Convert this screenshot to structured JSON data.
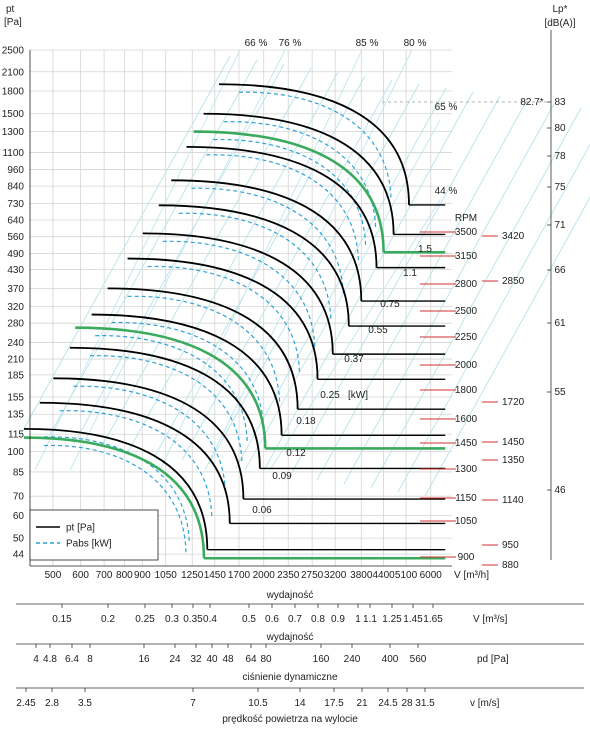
{
  "chart_data": {
    "type": "line",
    "y_axis": {
      "label": "pt",
      "unit": "[Pa]",
      "scale": "log",
      "ticks": [
        "2500",
        "2100",
        "1800",
        "1500",
        "1300",
        "1100",
        "960",
        "840",
        "730",
        "640",
        "560",
        "490",
        "430",
        "370",
        "320",
        "280",
        "240",
        "210",
        "185",
        "155",
        "135",
        "115",
        "100",
        "85",
        "70",
        "60",
        "50",
        "44"
      ]
    },
    "x_axis": {
      "label": "wydajność",
      "unit": "V [m³/h]",
      "scale": "log",
      "ticks": [
        "500",
        "600",
        "700",
        "800",
        "900",
        "1050",
        "1250",
        "1450",
        "1700",
        "2000",
        "2350",
        "2750",
        "3200",
        "3800",
        "4400",
        "5100",
        "6000"
      ]
    },
    "right_axis": {
      "label": "Lp*",
      "unit": "[dB(A)]",
      "ticks": [
        "83",
        "80",
        "78",
        "75",
        "71",
        "66",
        "61",
        "55",
        "46"
      ],
      "max_marker": "82.7*"
    },
    "rpm": {
      "title": "RPM",
      "values": [
        "3500",
        "3150",
        "2800",
        "2500",
        "2250",
        "2000",
        "1800",
        "1600",
        "1450",
        "1300",
        "1150",
        "1050",
        "900"
      ],
      "side_values": [
        "3420",
        "2850",
        "1720",
        "1450",
        "1350",
        "1140",
        "950",
        "880"
      ]
    },
    "efficiency_labels": [
      "66 %",
      "76 %",
      "85 %",
      "80 %",
      "65 %",
      "44 %"
    ],
    "power_labels": [
      "1.5",
      "1.1",
      "0.75",
      "0.55",
      "0.37",
      "0.25",
      "0.18",
      "0.12",
      "0.09",
      "0.06"
    ],
    "power_unit": "[kW]",
    "legend": [
      {
        "name": "pt [Pa]",
        "color": "#000000",
        "style": "solid"
      },
      {
        "name": "Pabs [kW]",
        "color": "#29a3d6",
        "style": "dashed"
      }
    ],
    "highlight_color": "#3aaa5c",
    "curves": [
      {
        "rpm": 3500,
        "shutoff_pa": 1900,
        "free_m3h": 5200,
        "power_kw": 1.5,
        "highlight": false
      },
      {
        "rpm": 3150,
        "shutoff_pa": 1500,
        "free_m3h": 4700,
        "power_kw": 1.5,
        "highlight": false
      },
      {
        "rpm": 2850,
        "shutoff_pa": 1300,
        "free_m3h": 4400,
        "power_kw": 1.1,
        "highlight": true
      },
      {
        "rpm": 2800,
        "shutoff_pa": 1150,
        "free_m3h": 4200,
        "power_kw": 1.1,
        "highlight": false
      },
      {
        "rpm": 2500,
        "shutoff_pa": 880,
        "free_m3h": 3800,
        "power_kw": 0.75,
        "highlight": false
      },
      {
        "rpm": 2250,
        "shutoff_pa": 720,
        "free_m3h": 3500,
        "power_kw": 0.55,
        "highlight": false
      },
      {
        "rpm": 2000,
        "shutoff_pa": 575,
        "free_m3h": 3150,
        "power_kw": 0.37,
        "highlight": false
      },
      {
        "rpm": 1800,
        "shutoff_pa": 470,
        "free_m3h": 2850,
        "power_kw": 0.25,
        "highlight": false
      },
      {
        "rpm": 1600,
        "shutoff_pa": 370,
        "free_m3h": 2500,
        "power_kw": 0.18,
        "highlight": false
      },
      {
        "rpm": 1450,
        "shutoff_pa": 300,
        "free_m3h": 2250,
        "power_kw": 0.12,
        "highlight": false
      },
      {
        "rpm": 1350,
        "shutoff_pa": 270,
        "free_m3h": 2020,
        "power_kw": 0.12,
        "highlight": true
      },
      {
        "rpm": 1300,
        "shutoff_pa": 230,
        "free_m3h": 1950,
        "power_kw": 0.09,
        "highlight": false
      },
      {
        "rpm": 1150,
        "shutoff_pa": 180,
        "free_m3h": 1750,
        "power_kw": 0.06,
        "highlight": false
      },
      {
        "rpm": 1050,
        "shutoff_pa": 148,
        "free_m3h": 1600,
        "power_kw": 0.06,
        "highlight": false
      },
      {
        "rpm": 900,
        "shutoff_pa": 120,
        "free_m3h": 1380,
        "power_kw": 0.06,
        "highlight": false
      },
      {
        "rpm": 880,
        "shutoff_pa": 112,
        "free_m3h": 1350,
        "power_kw": 0.06,
        "highlight": true
      }
    ],
    "secondary_scales": [
      {
        "label": "wydajność",
        "unit": "V  [m³/s]",
        "ticks": [
          "0.15",
          "0.2",
          "0.25",
          "0.3",
          "0.35",
          "0.4",
          "0.5",
          "0.6",
          "0.7",
          "0.8",
          "0.9",
          "1",
          "1.1",
          "1.25",
          "1.45",
          "1.65"
        ]
      },
      {
        "label": "ciśnienie dynamiczne",
        "unit": "pd  [Pa]",
        "ticks": [
          "4",
          "4.8",
          "6.4",
          "8",
          "16",
          "24",
          "32",
          "40",
          "48",
          "64",
          "80",
          "160",
          "240",
          "400",
          "560"
        ]
      },
      {
        "label": "prędkość powietrza na wylocie",
        "unit": "v  [m/s]",
        "ticks": [
          "2.45",
          "2.8",
          "3.5",
          "7",
          "10.5",
          "14",
          "17.5",
          "21",
          "24.5",
          "28",
          "31.5"
        ]
      }
    ]
  }
}
